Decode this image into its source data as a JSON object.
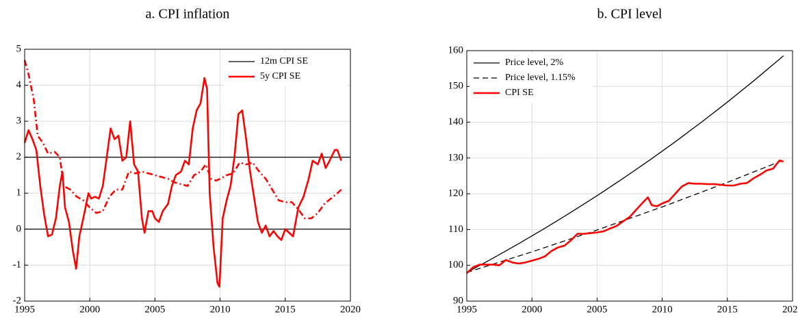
{
  "chart_data": [
    {
      "type": "line",
      "title": "a.  CPI inflation",
      "xlim": [
        1995,
        2020
      ],
      "xticks": [
        1995,
        2000,
        2005,
        2010,
        2015,
        2020
      ],
      "ylim": [
        -2,
        5
      ],
      "yticks": [
        -2,
        -1,
        0,
        1,
        2,
        3,
        4,
        5
      ],
      "grid": true,
      "legend": "upper right",
      "hlines": [
        0,
        2
      ],
      "series": [
        {
          "name": "12m CPI SE",
          "color": "#ff0000",
          "legend_color": "#000000",
          "dash": "solid",
          "x": [
            1995.0,
            1995.3,
            1995.6,
            1995.9,
            1996.2,
            1996.5,
            1996.8,
            1997.1,
            1997.4,
            1997.7,
            1997.9,
            1998.1,
            1998.4,
            1998.7,
            1998.95,
            1999.2,
            1999.5,
            1999.9,
            2000.1,
            2000.4,
            2000.7,
            2001.0,
            2001.3,
            2001.6,
            2001.9,
            2002.2,
            2002.5,
            2002.8,
            2003.1,
            2003.4,
            2003.7,
            2004.0,
            2004.2,
            2004.5,
            2004.8,
            2005.0,
            2005.3,
            2005.6,
            2006.0,
            2006.3,
            2006.6,
            2007.0,
            2007.3,
            2007.6,
            2007.9,
            2008.2,
            2008.5,
            2008.8,
            2009.0,
            2009.2,
            2009.5,
            2009.8,
            2009.95,
            2010.2,
            2010.5,
            2010.8,
            2011.1,
            2011.4,
            2011.7,
            2012.0,
            2012.3,
            2012.6,
            2012.9,
            2013.2,
            2013.5,
            2013.8,
            2014.1,
            2014.4,
            2014.7,
            2015.0,
            2015.3,
            2015.6,
            2016.0,
            2016.4,
            2016.8,
            2017.1,
            2017.5,
            2017.8,
            2018.1,
            2018.4,
            2018.8,
            2019.0,
            2019.3
          ],
          "values": [
            2.4,
            2.75,
            2.5,
            2.2,
            1.2,
            0.4,
            -0.2,
            -0.15,
            0.3,
            1.2,
            1.6,
            0.6,
            0.2,
            -0.6,
            -1.1,
            -0.2,
            0.3,
            1.0,
            0.85,
            0.9,
            0.85,
            1.2,
            2.0,
            2.8,
            2.5,
            2.6,
            1.9,
            2.0,
            3.0,
            1.8,
            1.6,
            0.3,
            -0.1,
            0.5,
            0.5,
            0.3,
            0.2,
            0.5,
            0.7,
            1.2,
            1.5,
            1.6,
            1.9,
            1.8,
            2.8,
            3.3,
            3.5,
            4.2,
            3.9,
            1.0,
            -0.5,
            -1.5,
            -1.6,
            0.3,
            0.8,
            1.2,
            2.0,
            3.2,
            3.3,
            2.5,
            1.6,
            0.9,
            0.2,
            -0.1,
            0.1,
            -0.2,
            -0.05,
            -0.2,
            -0.3,
            0.0,
            -0.1,
            -0.2,
            0.6,
            0.9,
            1.4,
            1.9,
            1.8,
            2.1,
            1.7,
            1.9,
            2.2,
            2.2,
            1.9
          ]
        },
        {
          "name": "5y CPI SE",
          "color": "#ff0000",
          "legend_color": "#ff0000",
          "dash": "dashdot",
          "x": [
            1995.0,
            1995.3,
            1995.7,
            1996.0,
            1996.4,
            1996.8,
            1997.3,
            1997.7,
            1998.0,
            1998.5,
            1999.0,
            1999.5,
            2000.0,
            2000.5,
            2001.0,
            2001.5,
            2002.0,
            2002.5,
            2003.0,
            2003.5,
            2004.0,
            2004.5,
            2005.0,
            2005.5,
            2006.0,
            2006.5,
            2007.0,
            2007.5,
            2008.0,
            2008.5,
            2008.9,
            2009.3,
            2009.7,
            2010.0,
            2010.5,
            2011.0,
            2011.5,
            2012.0,
            2012.5,
            2013.0,
            2013.5,
            2014.0,
            2014.5,
            2015.0,
            2015.5,
            2016.0,
            2016.5,
            2017.0,
            2017.5,
            2018.0,
            2018.5,
            2019.0,
            2019.3
          ],
          "values": [
            4.7,
            4.3,
            3.6,
            2.6,
            2.4,
            2.1,
            2.15,
            2.0,
            1.2,
            1.1,
            0.9,
            0.8,
            0.6,
            0.45,
            0.5,
            0.9,
            1.1,
            1.1,
            1.6,
            1.55,
            1.6,
            1.55,
            1.5,
            1.45,
            1.4,
            1.3,
            1.25,
            1.2,
            1.5,
            1.6,
            1.8,
            1.4,
            1.35,
            1.4,
            1.5,
            1.55,
            1.85,
            1.8,
            1.85,
            1.6,
            1.4,
            1.1,
            0.8,
            0.75,
            0.75,
            0.55,
            0.3,
            0.3,
            0.45,
            0.7,
            0.85,
            1.0,
            1.1
          ]
        }
      ]
    },
    {
      "type": "line",
      "title": "b.  CPI level",
      "xlim": [
        1995,
        2020
      ],
      "xticks": [
        1995,
        2000,
        2005,
        2010,
        2015,
        2020
      ],
      "ylim": [
        90,
        160
      ],
      "yticks": [
        90,
        100,
        110,
        120,
        130,
        140,
        150,
        160
      ],
      "grid": true,
      "legend": "upper left",
      "series": [
        {
          "name": "Price level, 2%",
          "color": "#000000",
          "legend_color": "#000000",
          "dash": "solid",
          "x": [
            1995,
            1997,
            1999,
            2001,
            2003,
            2005,
            2007,
            2009,
            2011,
            2013,
            2015,
            2017,
            2019,
            2019.3
          ],
          "values": [
            98,
            101.96,
            106.08,
            110.36,
            114.82,
            119.46,
            124.29,
            129.31,
            134.53,
            139.97,
            145.62,
            151.5,
            157.62,
            158.56
          ]
        },
        {
          "name": "Price level, 1.15%",
          "color": "#000000",
          "legend_color": "#000000",
          "dash": "dashed",
          "x": [
            1995,
            2000,
            2005,
            2010,
            2015,
            2019.3
          ],
          "values": [
            98,
            103.76,
            109.87,
            116.33,
            123.18,
            129.4
          ]
        },
        {
          "name": "CPI SE",
          "color": "#ff0000",
          "legend_color": "#ff0000",
          "dash": "solid",
          "x": [
            1995,
            1995.5,
            1996,
            1997,
            1997.5,
            1998,
            1998.5,
            1999,
            1999.5,
            2000,
            2000.5,
            2001,
            2001.5,
            2002,
            2002.5,
            2003,
            2003.5,
            2004,
            2004.5,
            2005,
            2005.5,
            2006,
            2006.5,
            2007,
            2007.5,
            2008,
            2008.5,
            2008.9,
            2009.2,
            2009.6,
            2010,
            2010.5,
            2011,
            2011.5,
            2012,
            2012.5,
            2013,
            2013.5,
            2014,
            2014.5,
            2015,
            2015.5,
            2016,
            2016.5,
            2017,
            2017.5,
            2018,
            2018.5,
            2019,
            2019.3
          ],
          "values": [
            97.8,
            99.5,
            100.2,
            100.2,
            100.0,
            101.5,
            100.8,
            100.5,
            100.8,
            101.3,
            101.8,
            102.5,
            104.0,
            105.0,
            105.5,
            107.0,
            108.8,
            108.8,
            109.0,
            109.2,
            109.5,
            110.3,
            111.0,
            112.3,
            113.5,
            115.5,
            117.5,
            119.0,
            116.8,
            116.5,
            117.3,
            118.0,
            120.0,
            122.0,
            123.0,
            122.8,
            122.8,
            122.7,
            122.7,
            122.5,
            122.3,
            122.3,
            122.8,
            123.0,
            124.3,
            125.3,
            126.5,
            127.0,
            129.3,
            129.0
          ]
        }
      ]
    }
  ]
}
